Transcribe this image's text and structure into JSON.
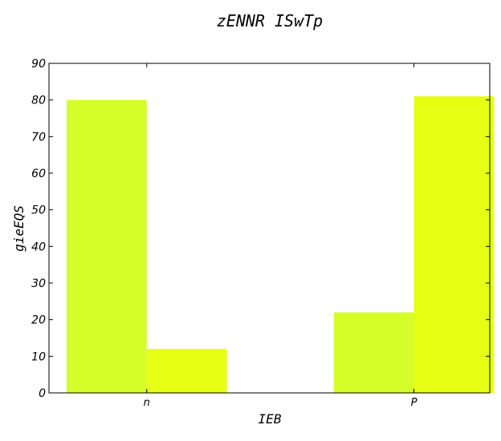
{
  "chart_data": {
    "type": "bar",
    "title": "zENNR ISwTp",
    "xlabel": "IEB",
    "ylabel": "gieEQS",
    "categories": [
      "n",
      "P"
    ],
    "series": [
      {
        "values": [
          80,
          22
        ],
        "color": "#d4ff2a"
      },
      {
        "values": [
          12,
          81
        ],
        "color": "#e6ff14"
      }
    ],
    "ylim": [
      0,
      90
    ],
    "yticks": [
      0,
      10,
      20,
      30,
      40,
      50,
      60,
      70,
      80,
      90
    ],
    "grid": false
  }
}
